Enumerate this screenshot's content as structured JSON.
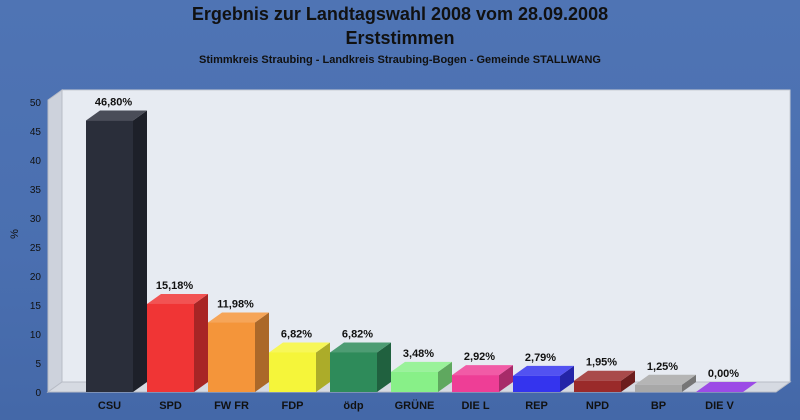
{
  "chart_data": {
    "type": "bar",
    "title": "Ergebnis zur Landtagswahl 2008 vom 28.09.2008",
    "subtitle": "Erststimmen",
    "caption": "Stimmkreis Straubing - Landkreis Straubing-Bogen - Gemeinde STALLWANG",
    "ylabel": "%",
    "ylim": [
      0,
      50
    ],
    "yticks": [
      0,
      5,
      10,
      15,
      20,
      25,
      30,
      35,
      40,
      45,
      50
    ],
    "grid": false,
    "categories": [
      "CSU",
      "SPD",
      "FW FR",
      "FDP",
      "ödp",
      "GRÜNE",
      "DIE L",
      "REP",
      "NPD",
      "BP",
      "DIE V"
    ],
    "values": [
      46.8,
      15.18,
      11.98,
      6.82,
      6.82,
      3.48,
      2.92,
      2.79,
      1.95,
      1.25,
      0.0
    ],
    "value_labels": [
      "46,80%",
      "15,18%",
      "11,98%",
      "6,82%",
      "6,82%",
      "3,48%",
      "2,92%",
      "2,79%",
      "1,95%",
      "1,25%",
      "0,00%"
    ],
    "colors": [
      "#2a2e3a",
      "#f03535",
      "#f4953a",
      "#f5f53a",
      "#2e8b5a",
      "#88f088",
      "#ee3e96",
      "#3434ee",
      "#9a2a2a",
      "#a8a8a8",
      "#8a2be2"
    ]
  }
}
